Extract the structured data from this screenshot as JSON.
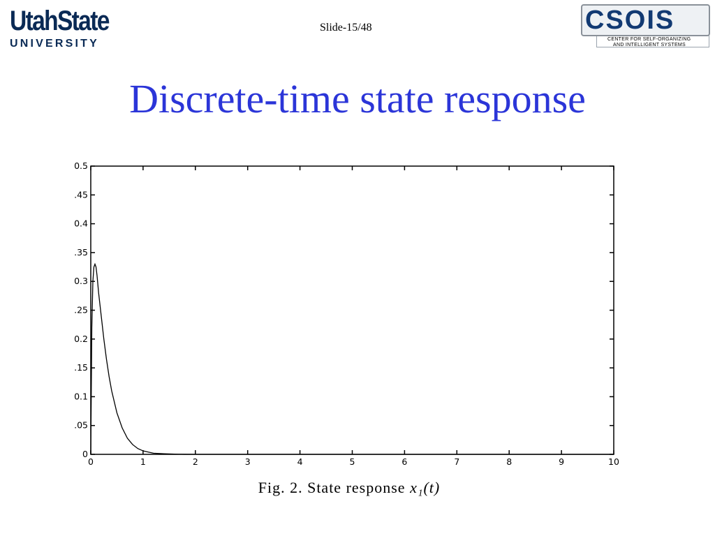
{
  "header": {
    "usu_logo_line1": "UtahState",
    "usu_logo_line2": "UNIVERSITY",
    "slide_number": "Slide-15/48",
    "csois_logo_text": "CSOIS",
    "csois_logo_sub1": "CENTER FOR SELF-ORGANIZING",
    "csois_logo_sub2": "AND INTELLIGENT SYSTEMS"
  },
  "slide": {
    "title": "Discrete-time state response"
  },
  "figure": {
    "caption_prefix": "Fig. 2.  State response ",
    "caption_math": "x₁(t)"
  },
  "chart_data": {
    "type": "line",
    "title": "",
    "xlabel": "",
    "ylabel": "",
    "xlim": [
      0,
      10
    ],
    "ylim": [
      0,
      0.5
    ],
    "xticks": [
      "0",
      "1",
      "2",
      "3",
      "4",
      "5",
      "6",
      "7",
      "8",
      "9",
      "10"
    ],
    "yticks": [
      "0",
      ".05",
      "0.1",
      ".15",
      "0.2",
      ".25",
      "0.3",
      ".35",
      "0.4",
      ".45",
      "0.5"
    ],
    "grid": false,
    "series": [
      {
        "x": [
          0,
          0.02,
          0.04,
          0.06,
          0.08,
          0.1,
          0.12,
          0.15,
          0.2,
          0.25,
          0.3,
          0.35,
          0.4,
          0.5,
          0.6,
          0.7,
          0.8,
          0.9,
          1.0,
          1.1,
          1.2,
          1.4,
          1.6,
          1.8,
          2.0,
          3,
          4,
          5,
          6,
          7,
          8,
          9,
          10
        ],
        "y": [
          0.0,
          0.22,
          0.3,
          0.325,
          0.33,
          0.325,
          0.31,
          0.28,
          0.24,
          0.2,
          0.165,
          0.135,
          0.11,
          0.072,
          0.046,
          0.028,
          0.017,
          0.01,
          0.006,
          0.004,
          0.002,
          0.001,
          0.0004,
          0.0001,
          0.0,
          0.0,
          0.0,
          0.0,
          0.0,
          0.0,
          0.0,
          0.0,
          0.0
        ],
        "color": "#000000"
      }
    ]
  }
}
